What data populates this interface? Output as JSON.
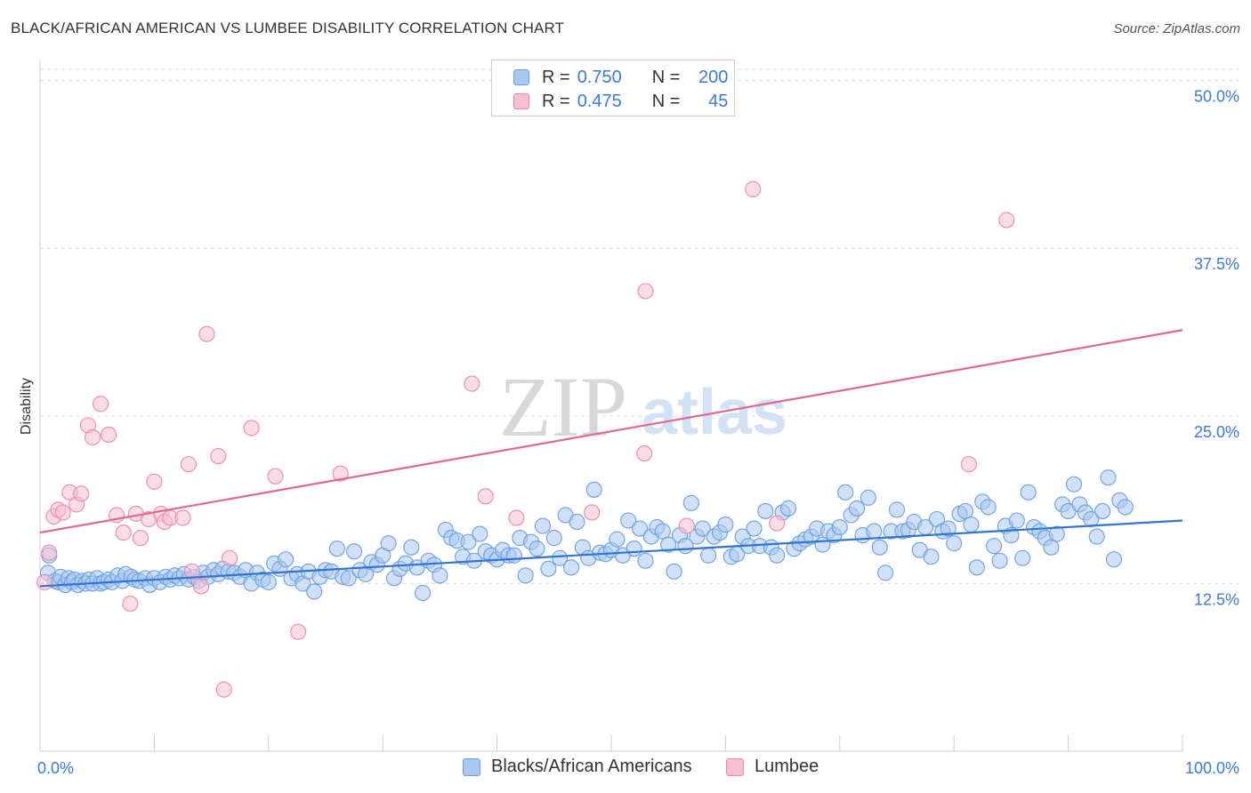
{
  "title": "BLACK/AFRICAN AMERICAN VS LUMBEE DISABILITY CORRELATION CHART",
  "source": "Source: ZipAtlas.com",
  "watermark": {
    "zip": "ZIP",
    "atlas": "atlas"
  },
  "colors": {
    "blue_fill": "#a9c8f0",
    "blue_stroke": "#6a9fe0",
    "blue_line": "#2f74d0",
    "pink_fill": "#f6bfd2",
    "pink_stroke": "#e88aab",
    "pink_line": "#e06890",
    "tick_text": "#3a7bd5",
    "grid": "#dddddd"
  },
  "legend": {
    "rows": [
      {
        "r_label": "R =",
        "r_value": "0.750",
        "n_label": "N =",
        "n_value": "200",
        "series": "blue"
      },
      {
        "r_label": "R =",
        "r_value": "0.475",
        "n_label": "N =",
        "n_value": "45",
        "series": "pink"
      }
    ]
  },
  "bottom_legend": [
    "Blacks/African Americans",
    "Lumbee"
  ],
  "chart_data": {
    "type": "scatter",
    "title": "BLACK/AFRICAN AMERICAN VS LUMBEE DISABILITY CORRELATION CHART",
    "xlabel": "",
    "ylabel": "Disability",
    "xlim": [
      0,
      100
    ],
    "ylim": [
      0,
      51.5
    ],
    "x_ticks": [
      "0.0%",
      "100.0%"
    ],
    "y_ticks": [
      {
        "value": 12.5,
        "label": "12.5%"
      },
      {
        "value": 25.0,
        "label": "25.0%"
      },
      {
        "value": 37.5,
        "label": "37.5%"
      },
      {
        "value": 50.0,
        "label": "50.0%"
      }
    ],
    "grid": "horizontal dashed",
    "series": [
      {
        "name": "Blacks/African Americans",
        "color": "blue",
        "trend": {
          "x": [
            0,
            100
          ],
          "y": [
            12.3,
            17.2
          ]
        },
        "points": [
          [
            0.7,
            13.3
          ],
          [
            0.8,
            14.6
          ],
          [
            1.3,
            12.7
          ],
          [
            1.6,
            12.6
          ],
          [
            1.8,
            13.0
          ],
          [
            2.2,
            12.4
          ],
          [
            2.5,
            12.9
          ],
          [
            2.8,
            12.6
          ],
          [
            3.0,
            12.8
          ],
          [
            3.3,
            12.4
          ],
          [
            3.7,
            12.7
          ],
          [
            4.0,
            12.5
          ],
          [
            4.3,
            12.8
          ],
          [
            4.6,
            12.5
          ],
          [
            5.0,
            12.9
          ],
          [
            5.3,
            12.5
          ],
          [
            5.6,
            12.6
          ],
          [
            6.0,
            12.8
          ],
          [
            6.3,
            12.6
          ],
          [
            6.8,
            13.1
          ],
          [
            7.2,
            12.7
          ],
          [
            7.5,
            13.2
          ],
          [
            8.0,
            13.0
          ],
          [
            8.3,
            12.8
          ],
          [
            8.7,
            12.7
          ],
          [
            9.2,
            12.9
          ],
          [
            9.6,
            12.4
          ],
          [
            10.0,
            12.9
          ],
          [
            10.5,
            12.6
          ],
          [
            11.0,
            13.0
          ],
          [
            11.4,
            12.8
          ],
          [
            11.8,
            13.1
          ],
          [
            12.2,
            12.9
          ],
          [
            12.6,
            13.2
          ],
          [
            13.0,
            12.8
          ],
          [
            13.5,
            13.0
          ],
          [
            13.9,
            12.7
          ],
          [
            14.3,
            13.3
          ],
          [
            14.7,
            13.0
          ],
          [
            15.2,
            13.5
          ],
          [
            15.6,
            13.2
          ],
          [
            16.0,
            13.6
          ],
          [
            16.5,
            13.4
          ],
          [
            17.0,
            13.3
          ],
          [
            17.5,
            13.0
          ],
          [
            18.0,
            13.5
          ],
          [
            18.5,
            12.5
          ],
          [
            19.0,
            13.3
          ],
          [
            19.5,
            12.8
          ],
          [
            20.0,
            12.6
          ],
          [
            20.5,
            14.0
          ],
          [
            21.0,
            13.6
          ],
          [
            21.5,
            14.3
          ],
          [
            22.0,
            12.9
          ],
          [
            22.5,
            13.2
          ],
          [
            23.0,
            12.5
          ],
          [
            23.5,
            13.4
          ],
          [
            24.0,
            11.9
          ],
          [
            24.5,
            13.0
          ],
          [
            25.0,
            13.5
          ],
          [
            25.5,
            13.4
          ],
          [
            26.0,
            15.1
          ],
          [
            26.5,
            13.0
          ],
          [
            27.0,
            12.9
          ],
          [
            27.5,
            14.9
          ],
          [
            28.0,
            13.5
          ],
          [
            28.5,
            13.2
          ],
          [
            29.0,
            14.1
          ],
          [
            29.5,
            13.9
          ],
          [
            30.0,
            14.6
          ],
          [
            30.5,
            15.5
          ],
          [
            31.0,
            12.9
          ],
          [
            31.5,
            13.6
          ],
          [
            32.0,
            14.0
          ],
          [
            32.5,
            15.2
          ],
          [
            33.0,
            13.7
          ],
          [
            33.5,
            11.8
          ],
          [
            34.0,
            14.2
          ],
          [
            34.5,
            13.9
          ],
          [
            35.0,
            13.1
          ],
          [
            35.5,
            16.5
          ],
          [
            36.0,
            15.9
          ],
          [
            36.5,
            15.7
          ],
          [
            37.0,
            14.5
          ],
          [
            37.5,
            15.6
          ],
          [
            38.0,
            14.2
          ],
          [
            38.5,
            16.2
          ],
          [
            39.0,
            14.9
          ],
          [
            39.5,
            14.6
          ],
          [
            40.0,
            14.3
          ],
          [
            40.5,
            15.0
          ],
          [
            41.0,
            14.6
          ],
          [
            41.5,
            14.6
          ],
          [
            42.0,
            15.9
          ],
          [
            42.5,
            13.1
          ],
          [
            43.0,
            15.6
          ],
          [
            43.5,
            15.1
          ],
          [
            44.0,
            16.8
          ],
          [
            44.5,
            13.6
          ],
          [
            45.0,
            15.9
          ],
          [
            45.5,
            14.4
          ],
          [
            46.0,
            17.6
          ],
          [
            46.5,
            13.7
          ],
          [
            47.0,
            17.1
          ],
          [
            47.5,
            15.2
          ],
          [
            48.0,
            14.4
          ],
          [
            48.5,
            19.5
          ],
          [
            49.0,
            14.8
          ],
          [
            49.5,
            14.7
          ],
          [
            50.0,
            15.0
          ],
          [
            50.5,
            15.8
          ],
          [
            51.0,
            14.6
          ],
          [
            51.5,
            17.2
          ],
          [
            52.0,
            15.1
          ],
          [
            52.5,
            16.6
          ],
          [
            53.0,
            14.2
          ],
          [
            53.5,
            16.0
          ],
          [
            54.0,
            16.7
          ],
          [
            54.5,
            16.4
          ],
          [
            55.0,
            15.4
          ],
          [
            55.5,
            13.4
          ],
          [
            56.0,
            16.1
          ],
          [
            56.5,
            15.3
          ],
          [
            57.0,
            18.5
          ],
          [
            57.5,
            16.0
          ],
          [
            58.0,
            16.6
          ],
          [
            58.5,
            14.6
          ],
          [
            59.0,
            16.0
          ],
          [
            59.5,
            16.3
          ],
          [
            60.0,
            16.9
          ],
          [
            60.5,
            14.5
          ],
          [
            61.0,
            14.7
          ],
          [
            61.5,
            16.0
          ],
          [
            62.0,
            15.3
          ],
          [
            62.5,
            16.6
          ],
          [
            63.0,
            15.3
          ],
          [
            63.5,
            17.9
          ],
          [
            64.0,
            15.2
          ],
          [
            64.5,
            14.6
          ],
          [
            65.0,
            17.8
          ],
          [
            65.5,
            18.1
          ],
          [
            66.0,
            15.1
          ],
          [
            66.5,
            15.5
          ],
          [
            67.0,
            15.8
          ],
          [
            67.5,
            16.0
          ],
          [
            68.0,
            16.6
          ],
          [
            68.5,
            15.4
          ],
          [
            69.0,
            16.4
          ],
          [
            69.5,
            16.1
          ],
          [
            70.0,
            16.7
          ],
          [
            70.5,
            19.3
          ],
          [
            71.0,
            17.6
          ],
          [
            71.5,
            18.1
          ],
          [
            72.0,
            16.1
          ],
          [
            72.5,
            18.9
          ],
          [
            73.0,
            16.4
          ],
          [
            73.5,
            15.2
          ],
          [
            74.0,
            13.3
          ],
          [
            74.5,
            16.4
          ],
          [
            75.0,
            18.0
          ],
          [
            75.5,
            16.4
          ],
          [
            76.0,
            16.5
          ],
          [
            76.5,
            17.1
          ],
          [
            77.0,
            15.0
          ],
          [
            77.5,
            16.7
          ],
          [
            78.0,
            14.5
          ],
          [
            78.5,
            17.3
          ],
          [
            79.0,
            16.4
          ],
          [
            79.5,
            16.6
          ],
          [
            80.0,
            15.5
          ],
          [
            80.5,
            17.7
          ],
          [
            81.0,
            17.9
          ],
          [
            81.5,
            16.9
          ],
          [
            82.0,
            13.7
          ],
          [
            82.5,
            18.6
          ],
          [
            83.0,
            18.2
          ],
          [
            83.5,
            15.3
          ],
          [
            84.0,
            14.2
          ],
          [
            84.5,
            16.8
          ],
          [
            85.0,
            16.1
          ],
          [
            85.5,
            17.2
          ],
          [
            86.0,
            14.4
          ],
          [
            86.5,
            19.3
          ],
          [
            87.0,
            16.7
          ],
          [
            87.5,
            16.4
          ],
          [
            88.0,
            15.9
          ],
          [
            88.5,
            15.2
          ],
          [
            89.0,
            16.2
          ],
          [
            89.5,
            18.4
          ],
          [
            90.0,
            17.9
          ],
          [
            90.5,
            19.9
          ],
          [
            91.0,
            18.4
          ],
          [
            91.5,
            17.8
          ],
          [
            92.0,
            17.3
          ],
          [
            92.5,
            16.0
          ],
          [
            93.0,
            17.9
          ],
          [
            93.5,
            20.4
          ],
          [
            94.0,
            14.3
          ],
          [
            94.5,
            18.7
          ],
          [
            95.0,
            18.2
          ]
        ]
      },
      {
        "name": "Lumbee",
        "color": "pink",
        "trend": {
          "x": [
            0,
            100
          ],
          "y": [
            16.3,
            31.4
          ]
        },
        "points": [
          [
            0.4,
            12.6
          ],
          [
            0.8,
            14.8
          ],
          [
            1.2,
            17.5
          ],
          [
            1.6,
            18.0
          ],
          [
            2.0,
            17.8
          ],
          [
            2.6,
            19.3
          ],
          [
            3.2,
            18.4
          ],
          [
            3.6,
            19.2
          ],
          [
            4.2,
            24.3
          ],
          [
            4.6,
            23.4
          ],
          [
            5.3,
            25.9
          ],
          [
            6.0,
            23.6
          ],
          [
            6.7,
            17.6
          ],
          [
            7.3,
            16.3
          ],
          [
            7.9,
            11.0
          ],
          [
            8.4,
            17.7
          ],
          [
            8.8,
            15.9
          ],
          [
            9.5,
            17.3
          ],
          [
            10.0,
            20.1
          ],
          [
            10.6,
            17.7
          ],
          [
            10.9,
            17.1
          ],
          [
            11.4,
            17.4
          ],
          [
            12.5,
            17.4
          ],
          [
            13.0,
            21.4
          ],
          [
            13.3,
            13.4
          ],
          [
            14.1,
            12.3
          ],
          [
            14.6,
            31.1
          ],
          [
            15.6,
            22.0
          ],
          [
            16.1,
            4.6
          ],
          [
            16.6,
            14.4
          ],
          [
            18.5,
            24.1
          ],
          [
            20.6,
            20.5
          ],
          [
            22.6,
            8.9
          ],
          [
            26.3,
            20.7
          ],
          [
            37.8,
            27.4
          ],
          [
            39.0,
            19.0
          ],
          [
            41.7,
            17.4
          ],
          [
            48.3,
            17.8
          ],
          [
            52.9,
            22.2
          ],
          [
            53.0,
            34.3
          ],
          [
            56.6,
            16.8
          ],
          [
            62.4,
            41.9
          ],
          [
            64.5,
            17.0
          ],
          [
            81.3,
            21.4
          ],
          [
            84.6,
            39.6
          ]
        ]
      }
    ]
  }
}
